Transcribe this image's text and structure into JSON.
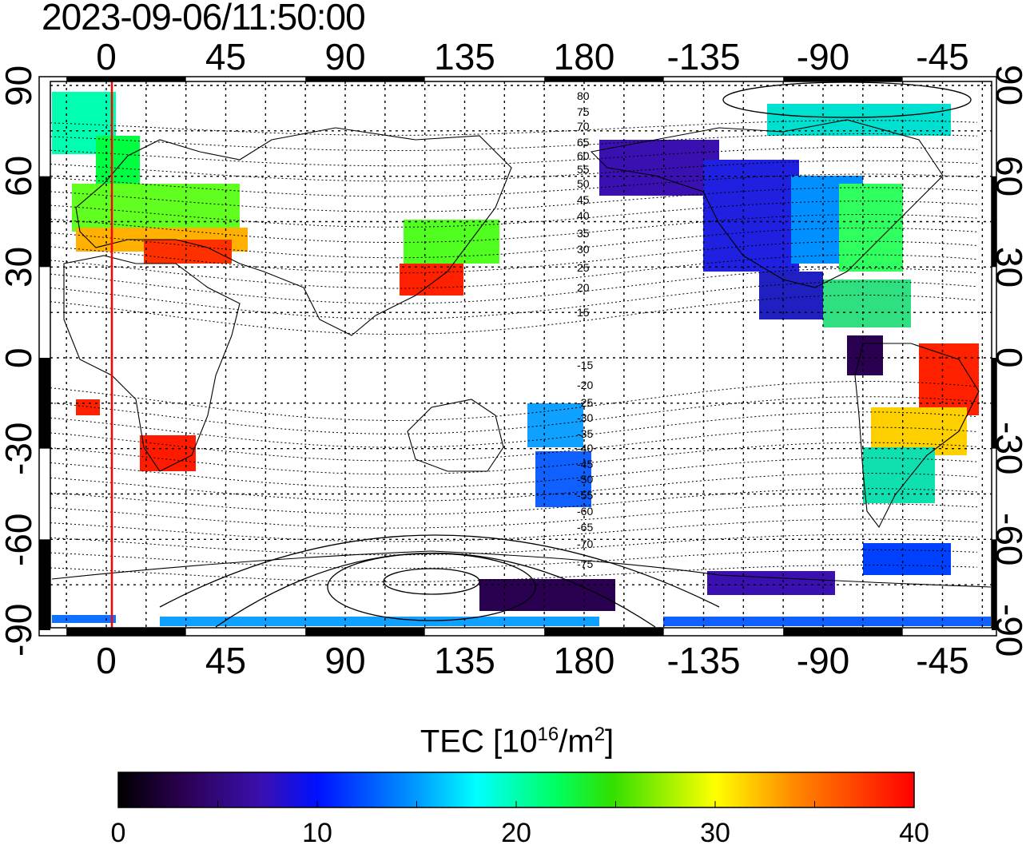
{
  "timestamp": "2023-09-06/11:50:00",
  "longitude_ticks_labels": [
    "0",
    "45",
    "90",
    "135",
    "180",
    "-135",
    "-90",
    "-45"
  ],
  "longitude_ticks_values": [
    0,
    45,
    90,
    135,
    180,
    225,
    270,
    315
  ],
  "latitude_ticks_labels": [
    "90",
    "60",
    "30",
    "0",
    "-30",
    "-60",
    "-90"
  ],
  "latitude_ticks_values": [
    90,
    60,
    30,
    0,
    -30,
    -60,
    -90
  ],
  "magnetic_latitude_labels": [
    "80",
    "75",
    "70",
    "65",
    "60",
    "55",
    "50",
    "45",
    "40",
    "35",
    "30",
    "25",
    "20",
    "15",
    "-15",
    "-20",
    "-25",
    "-30",
    "-35",
    "-40",
    "-45",
    "-50",
    "-55",
    "-60",
    "-65",
    "-70",
    "-75"
  ],
  "colorbar": {
    "title_prefix": "TEC  [10",
    "title_sup1": "16",
    "title_mid": "/m",
    "title_sup2": "2",
    "title_suffix": "]",
    "tick_labels": [
      "0",
      "10",
      "20",
      "30",
      "40"
    ],
    "min": 0,
    "max": 40
  },
  "colors": {
    "terminator": "#ff0000",
    "grid": "#000000"
  }
}
